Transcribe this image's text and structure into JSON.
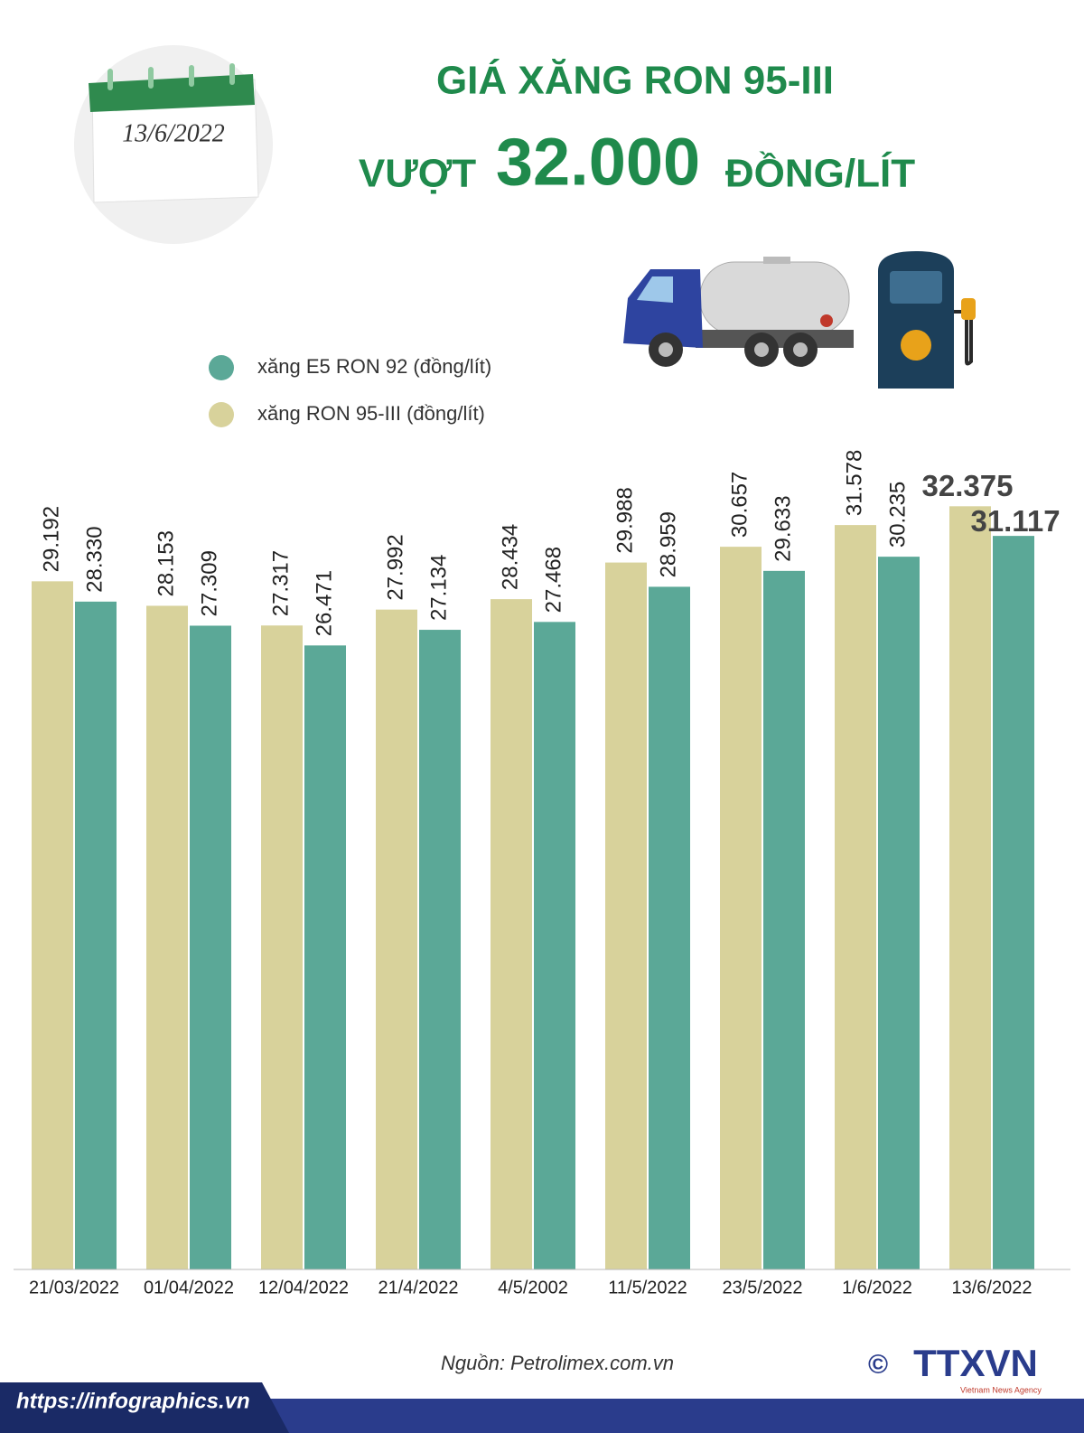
{
  "chart_data": {
    "type": "bar",
    "date": "13/6/2022",
    "title": "GIÁ XĂNG RON 95-III",
    "headline": [
      "VƯỢT",
      "32.000",
      "ĐỒNG/LÍT"
    ],
    "categories": [
      "21/03/2022",
      "01/04/2022",
      "12/04/2022",
      "21/4/2022",
      "4/5/2002",
      "11/5/2022",
      "23/5/2022",
      "1/6/2022",
      "13/6/2022"
    ],
    "series": [
      {
        "name": "xăng RON 95-III (đồng/lít)",
        "color": "#d8d29b",
        "values": [
          29192,
          28153,
          27317,
          27992,
          28434,
          29988,
          30657,
          31578,
          32375
        ],
        "value_labels": [
          "29.192",
          "28.153",
          "27.317",
          "27.992",
          "28.434",
          "29.988",
          "30.657",
          "31.578",
          "32.375"
        ]
      },
      {
        "name": "xăng E5 RON 92 (đồng/lít)",
        "color": "#5ba897",
        "values": [
          28330,
          27309,
          26471,
          27134,
          27468,
          28959,
          29633,
          30235,
          31117
        ],
        "value_labels": [
          "28.330",
          "27.309",
          "26.471",
          "27.134",
          "27.468",
          "28.959",
          "29.633",
          "30.235",
          "31.117"
        ]
      }
    ],
    "ylim": [
      0,
      33000
    ],
    "source": "Nguồn: Petrolimex.com.vn"
  },
  "footer": {
    "url": "https://infographics.vn",
    "copyright": "©",
    "logo": "TTXVN",
    "logo_tagline": "Vietnam News Agency"
  }
}
